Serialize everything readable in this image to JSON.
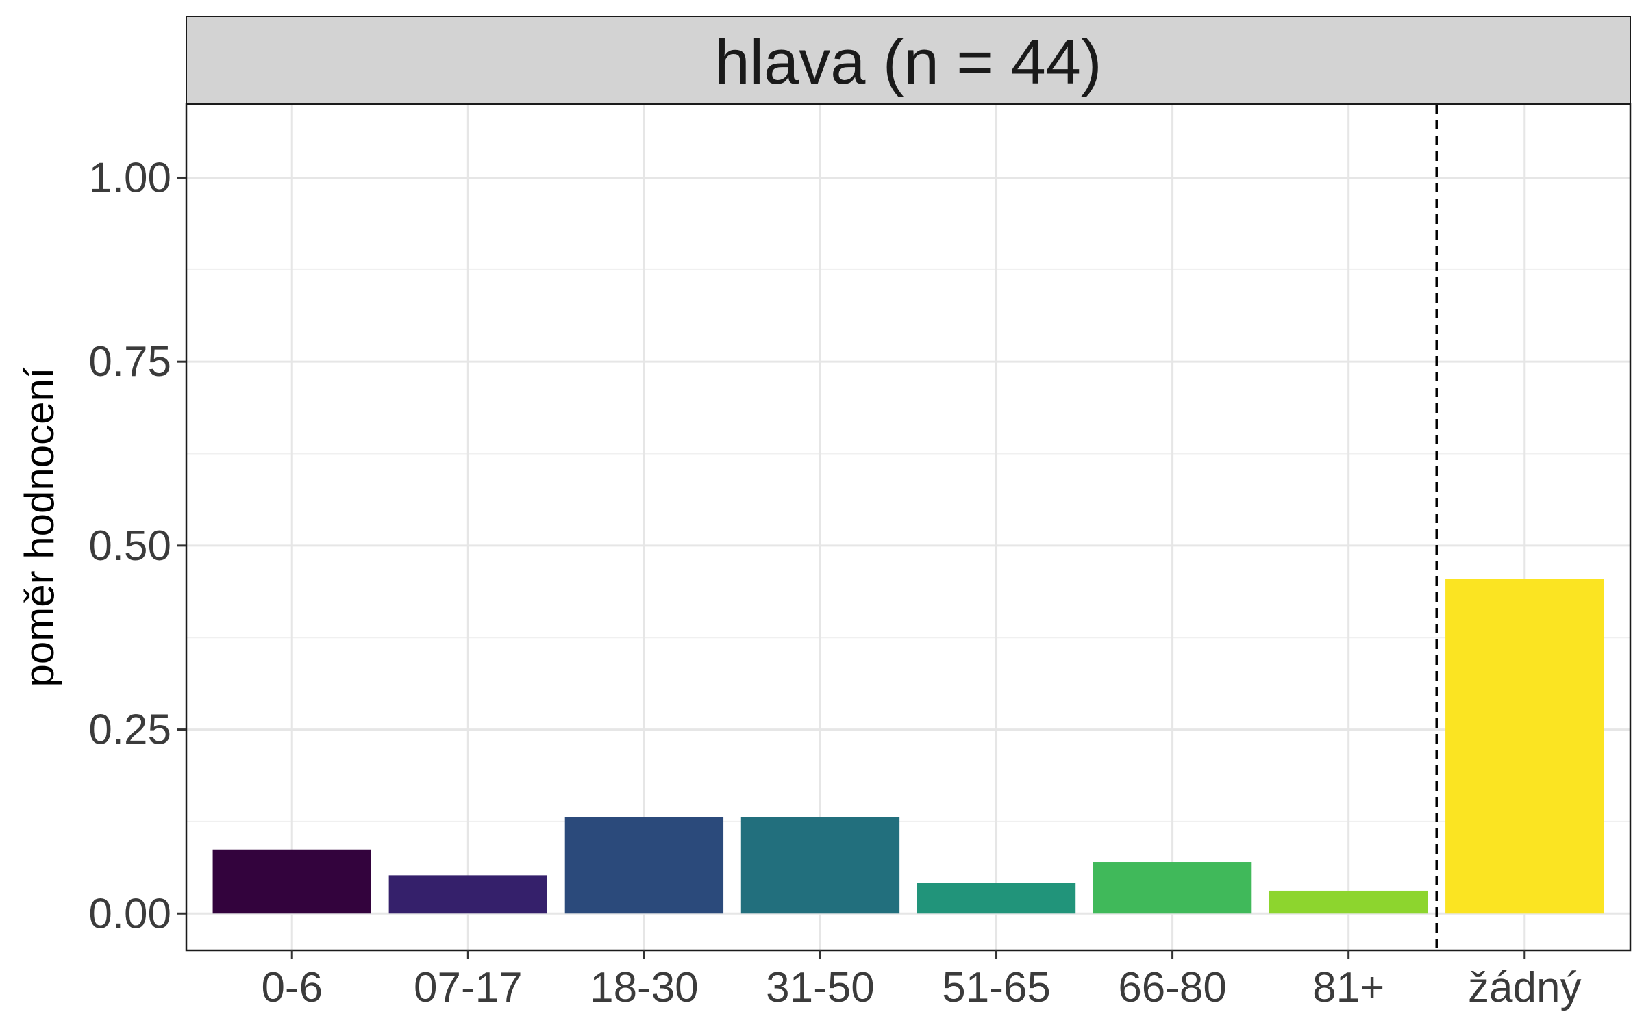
{
  "chart_data": {
    "type": "bar",
    "title": "hlava (n = 44)",
    "xlabel": "",
    "ylabel": "poměr hodnocení",
    "categories": [
      "0-6",
      "07-17",
      "18-30",
      "31-50",
      "51-65",
      "66-80",
      "81+",
      "žádný"
    ],
    "values": [
      0.087,
      0.052,
      0.131,
      0.131,
      0.042,
      0.07,
      0.031,
      0.455
    ],
    "colors": [
      "#33033d",
      "#35206b",
      "#2b4a7b",
      "#226f7d",
      "#21947a",
      "#40b95a",
      "#8dd52e",
      "#fbe422"
    ],
    "ylim": [
      -0.05,
      1.1
    ],
    "yticks": [
      0.0,
      0.25,
      0.5,
      0.75,
      1.0
    ],
    "ytick_labels": [
      "0.00",
      "0.25",
      "0.50",
      "0.75",
      "1.00"
    ],
    "grid": true,
    "reference_line": {
      "style": "dashed",
      "after_category": "81+"
    },
    "strip_color": "#d3d3d3"
  }
}
